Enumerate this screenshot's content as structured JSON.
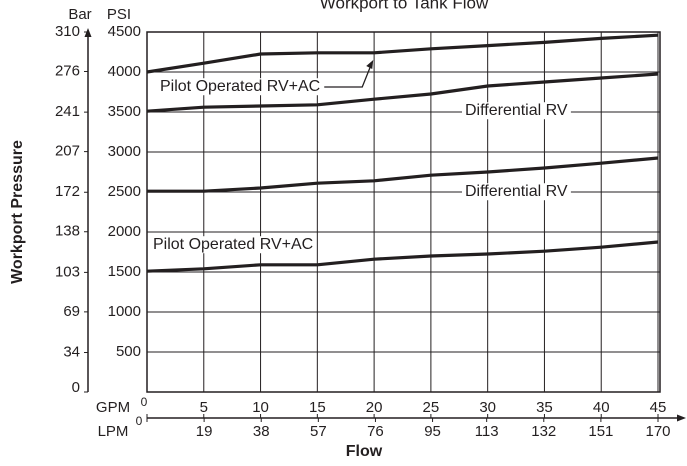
{
  "chart_data": {
    "type": "line",
    "title": "Workport to Tank Flow",
    "y_label": "Workport Pressure",
    "x_label": "Flow",
    "y_unit": "PSI",
    "y2_unit": "Bar",
    "x_unit": "GPM",
    "x2_unit": "LPM",
    "x": [
      0,
      5,
      10,
      15,
      20,
      25,
      30,
      35,
      40,
      45
    ],
    "xlim": [
      0,
      45
    ],
    "xticks": [
      0,
      5,
      10,
      15,
      20,
      25,
      30,
      35,
      40,
      45
    ],
    "x2lim": [
      0,
      170
    ],
    "x2ticks": [
      0,
      19,
      38,
      57,
      76,
      95,
      113,
      132,
      151,
      170
    ],
    "ylim": [
      0,
      4500
    ],
    "yticks": [
      500,
      1000,
      1500,
      2000,
      2500,
      3000,
      3500,
      4000,
      4500
    ],
    "y2lim": [
      0,
      310
    ],
    "y2ticks": [
      0,
      34,
      69,
      103,
      138,
      172,
      207,
      241,
      276,
      310
    ],
    "grid": true,
    "series": [
      {
        "name": "Pilot Operated RV+AC",
        "color": "#231f20",
        "values": [
          4000,
          4110,
          4225,
          4240,
          4240,
          4290,
          4330,
          4370,
          4420,
          4460
        ]
      },
      {
        "name": "Differential RV",
        "color": "#231f20",
        "values": [
          3510,
          3560,
          3575,
          3590,
          3660,
          3725,
          3825,
          3875,
          3925,
          3975
        ]
      },
      {
        "name": "Differential RV",
        "color": "#231f20",
        "values": [
          2510,
          2510,
          2550,
          2610,
          2640,
          2710,
          2750,
          2800,
          2860,
          2925
        ]
      },
      {
        "name": "Pilot Operated RV+AC",
        "color": "#231f20",
        "values": [
          1510,
          1540,
          1590,
          1590,
          1660,
          1700,
          1725,
          1760,
          1810,
          1875
        ]
      }
    ]
  }
}
